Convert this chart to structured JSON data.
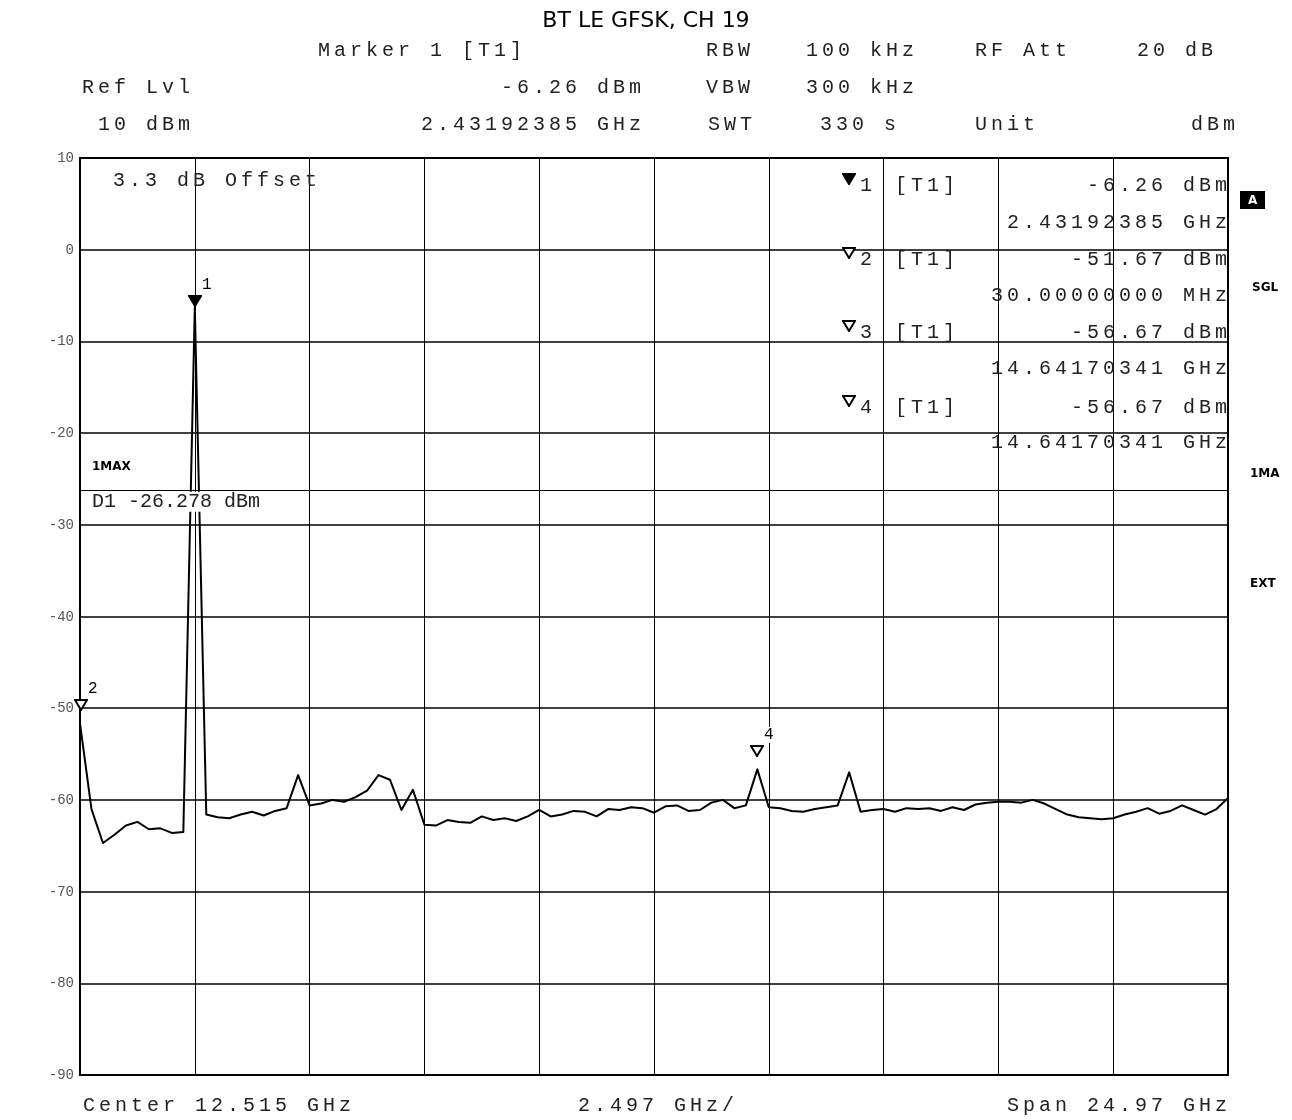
{
  "chart_data": {
    "type": "line",
    "title": "BT LE GFSK, CH 19",
    "categories": [
      null,
      null,
      null,
      null,
      null,
      null,
      null,
      null,
      null,
      null,
      null,
      null,
      null,
      null,
      null,
      null,
      null,
      null,
      null,
      null,
      null,
      null,
      null,
      null,
      null,
      null,
      null,
      null,
      null,
      null,
      null,
      null,
      null,
      null,
      null,
      null,
      null,
      null,
      null,
      null,
      null,
      null,
      null,
      null,
      null,
      null,
      null,
      null,
      null,
      null,
      null,
      null,
      null,
      null,
      null,
      null,
      null,
      null,
      null,
      null,
      null,
      null,
      null,
      null,
      null,
      null,
      null,
      null,
      null,
      null,
      null,
      null,
      null,
      null,
      null,
      null,
      null,
      null,
      null,
      null,
      null,
      null,
      null,
      null,
      null,
      null,
      null,
      null,
      null,
      null,
      null,
      null,
      null,
      null,
      null,
      null,
      null,
      null,
      null,
      null,
      null
    ],
    "series": [
      {
        "color": "#000000",
        "values": [
          -51.67,
          -61.0,
          -64.7,
          -63.8,
          -62.8,
          -62.4,
          -63.2,
          -63.1,
          -63.6,
          -63.5,
          -6.26,
          -61.6,
          -61.9,
          -62.0,
          -61.6,
          -61.3,
          -61.7,
          -61.2,
          -60.9,
          -57.3,
          -60.6,
          -60.4,
          -60.0,
          -60.2,
          -59.7,
          -59.0,
          -57.3,
          -57.8,
          -61.1,
          -58.9,
          -62.7,
          -62.8,
          -62.2,
          -62.4,
          -62.5,
          -61.8,
          -62.2,
          -62.0,
          -62.3,
          -61.8,
          -61.1,
          -61.8,
          -61.6,
          -61.2,
          -61.3,
          -61.8,
          -61.0,
          -61.1,
          -60.8,
          -60.9,
          -61.4,
          -60.7,
          -60.6,
          -61.2,
          -61.1,
          -60.3,
          -60.0,
          -60.9,
          -60.6,
          -56.67,
          -60.8,
          -60.9,
          -61.2,
          -61.3,
          -61.0,
          -60.8,
          -60.6,
          -57.0,
          -61.3,
          -61.1,
          -61.0,
          -61.3,
          -60.9,
          -61.0,
          -60.9,
          -61.2,
          -60.8,
          -61.1,
          -60.5,
          -60.3,
          -60.2,
          -60.2,
          -60.3,
          -60.0,
          -60.4,
          -61.0,
          -61.6,
          -61.9,
          -62.0,
          -62.1,
          -62.0,
          -61.6,
          -61.3,
          -60.9,
          -61.5,
          -61.2,
          -60.6,
          -61.1,
          -61.6,
          -61.0,
          -59.8
        ],
        "name": null
      }
    ],
    "ylim": [
      -90,
      10
    ],
    "yticks": [
      -90,
      -80,
      -70,
      -60,
      -50,
      -40,
      -30,
      -20,
      -10,
      0,
      10
    ],
    "tick_labels": "y",
    "grid": true,
    "line_style": "solid",
    "ref_lines": [
      {
        "axis": "y",
        "value": -26.278,
        "label": "D1 -26.278 dBm",
        "color": "#000000"
      }
    ],
    "annotations": [
      "Marker 1 [T1]",
      "RBW",
      "100 kHz",
      "RF Att",
      "20 dB",
      "Ref Lvl",
      "-6.26 dBm",
      "VBW",
      "300 kHz",
      "10 dBm",
      "2.43192385 GHz",
      "SWT",
      "330 s",
      "Unit",
      "dBm",
      "3.3 dB Offset",
      "1MAX",
      "A",
      "SGL",
      "1MA",
      "EXT",
      "Center 12.515 GHz",
      "2.497 GHz/",
      "Span 24.97 GHz",
      "1",
      "[T1]",
      "-6.26 dBm",
      "2.43192385 GHz",
      "2",
      "[T1]",
      "-51.67 dBm",
      "30.00000000 MHz",
      "3",
      "[T1]",
      "-56.67 dBm",
      "14.64170341 GHz",
      "4",
      "[T1]",
      "-56.67 dBm",
      "14.64170341 GHz",
      "1",
      "2",
      "4"
    ]
  }
}
